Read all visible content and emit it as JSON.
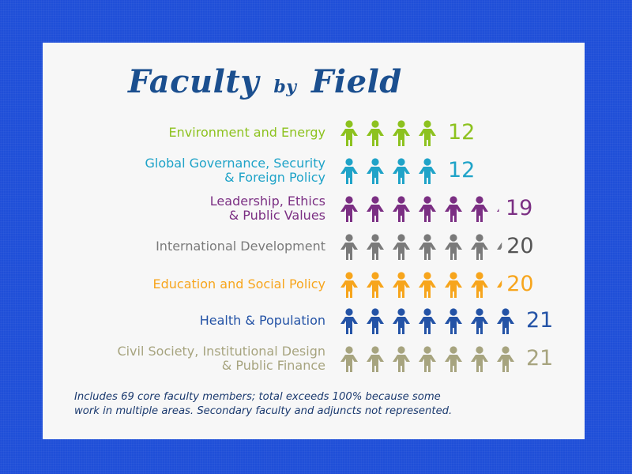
{
  "title": {
    "main": "Faculty",
    "small": "by",
    "field": "Field"
  },
  "chart_data": {
    "type": "bar",
    "categories": [
      "Environment and Energy",
      "Global Governance, Security & Foreign Policy",
      "Leadership, Ethics & Public Values",
      "International Development",
      "Education and Social Policy",
      "Health & Population",
      "Civil Society, Institutional Design & Public Finance"
    ],
    "values": [
      12,
      12,
      19,
      20,
      20,
      21,
      21
    ],
    "title": "Faculty by Field",
    "note": "Includes 69 core faculty members; total exceeds 100% because some work in multiple areas. Secondary faculty and adjuncts not represented."
  },
  "rows": [
    {
      "lines": [
        "Environment and Energy"
      ],
      "value": "12",
      "icons": 4,
      "partial": 0,
      "color": "#8dc21f",
      "value_color": "#8dc21f"
    },
    {
      "lines": [
        "Global Governance, Security",
        "& Foreign Policy"
      ],
      "value": "12",
      "icons": 4,
      "partial": 0,
      "color": "#1fa3c8",
      "value_color": "#1fa3c8"
    },
    {
      "lines": [
        "Leadership, Ethics",
        "& Public Values"
      ],
      "value": "19",
      "icons": 6,
      "partial": 0.33,
      "color": "#7b2f83",
      "value_color": "#7b2f83"
    },
    {
      "lines": [
        "International Development"
      ],
      "value": "20",
      "icons": 6,
      "partial": 0.67,
      "color": "#7a7a7a",
      "value_color": "#555555"
    },
    {
      "lines": [
        "Education and Social Policy"
      ],
      "value": "20",
      "icons": 6,
      "partial": 0.67,
      "color": "#f7a51c",
      "value_color": "#f7a51c"
    },
    {
      "lines": [
        "Health & Population"
      ],
      "value": "21",
      "icons": 7,
      "partial": 0,
      "color": "#2453a6",
      "value_color": "#2453a6"
    },
    {
      "lines": [
        "Civil Society, Institutional Design",
        "& Public Finance"
      ],
      "value": "21",
      "icons": 7,
      "partial": 0,
      "color": "#a7a47f",
      "value_color": "#a7a47f"
    }
  ],
  "note": {
    "line1": "Includes 69 core faculty members; total exceeds 100% because some",
    "line2": "work in multiple areas. Secondary faculty and adjuncts not represented."
  }
}
